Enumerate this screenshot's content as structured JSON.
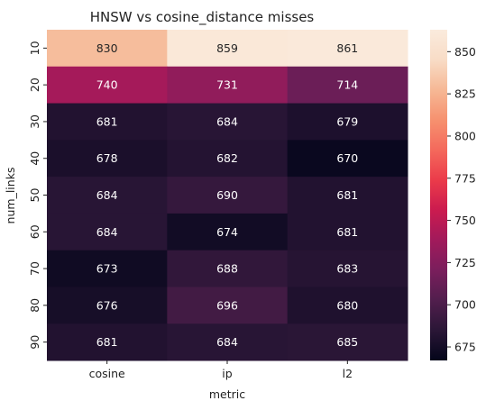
{
  "chart_data": {
    "type": "heatmap",
    "title": "HNSW vs cosine_distance misses",
    "xlabel": "metric",
    "ylabel": "num_links",
    "x_categories": [
      "cosine",
      "ip",
      "l2"
    ],
    "y_categories": [
      "10",
      "20",
      "30",
      "40",
      "50",
      "60",
      "70",
      "80",
      "90"
    ],
    "values": [
      [
        830,
        859,
        861
      ],
      [
        740,
        731,
        714
      ],
      [
        681,
        684,
        679
      ],
      [
        678,
        682,
        670
      ],
      [
        684,
        690,
        681
      ],
      [
        684,
        674,
        681
      ],
      [
        673,
        688,
        683
      ],
      [
        676,
        696,
        680
      ],
      [
        681,
        684,
        685
      ]
    ],
    "colorbar": {
      "min": 667,
      "max": 863,
      "ticks": [
        675,
        700,
        725,
        750,
        775,
        800,
        825,
        850
      ],
      "colormap": "rocket",
      "stops": [
        "#03051a",
        "#2a1636",
        "#511e4d",
        "#7a1e5c",
        "#a11a5b",
        "#cb1b4f",
        "#eb3b4a",
        "#f4695c",
        "#f6916f",
        "#f6b895",
        "#f8dcc6",
        "#faebdd"
      ]
    },
    "grid": false
  }
}
